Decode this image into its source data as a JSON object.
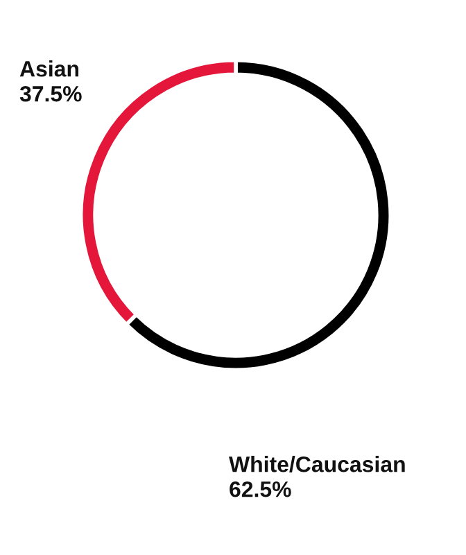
{
  "chart_data": {
    "type": "donut",
    "categories": [
      "White/Caucasian",
      "Asian"
    ],
    "values": [
      62.5,
      37.5
    ],
    "colors": [
      "#000000",
      "#e4173b"
    ],
    "value_labels": [
      "62.5%",
      "37.5%"
    ]
  }
}
